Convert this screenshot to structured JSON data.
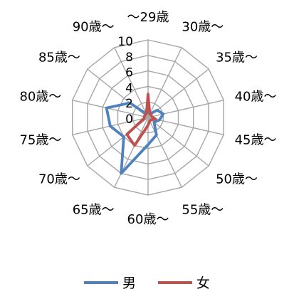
{
  "chart_data": {
    "type": "radar",
    "categories": [
      "～29歳",
      "30歳～",
      "35歳～",
      "40歳～",
      "45歳～",
      "50歳～",
      "55歳～",
      "60歳～",
      "65歳～",
      "70歳～",
      "75歳～",
      "80歳～",
      "85歳～",
      "90歳～"
    ],
    "radial_ticks": [
      "0",
      "2",
      "4",
      "6",
      "8",
      "10"
    ],
    "rlim": [
      0,
      10
    ],
    "series": [
      {
        "name": "男",
        "color": "#4e81bd",
        "values": [
          1,
          0.5,
          1.5,
          2,
          1.5,
          1,
          2.5,
          3.5,
          8,
          4,
          5,
          5.5,
          3,
          0.5
        ]
      },
      {
        "name": "女",
        "color": "#c0504d",
        "values": [
          3,
          0.5,
          0.5,
          0.5,
          1,
          0.5,
          0.5,
          1,
          4,
          3.5,
          0.5,
          0.5,
          0.5,
          0.5
        ]
      }
    ],
    "legend_position": "bottom",
    "grid": true
  }
}
